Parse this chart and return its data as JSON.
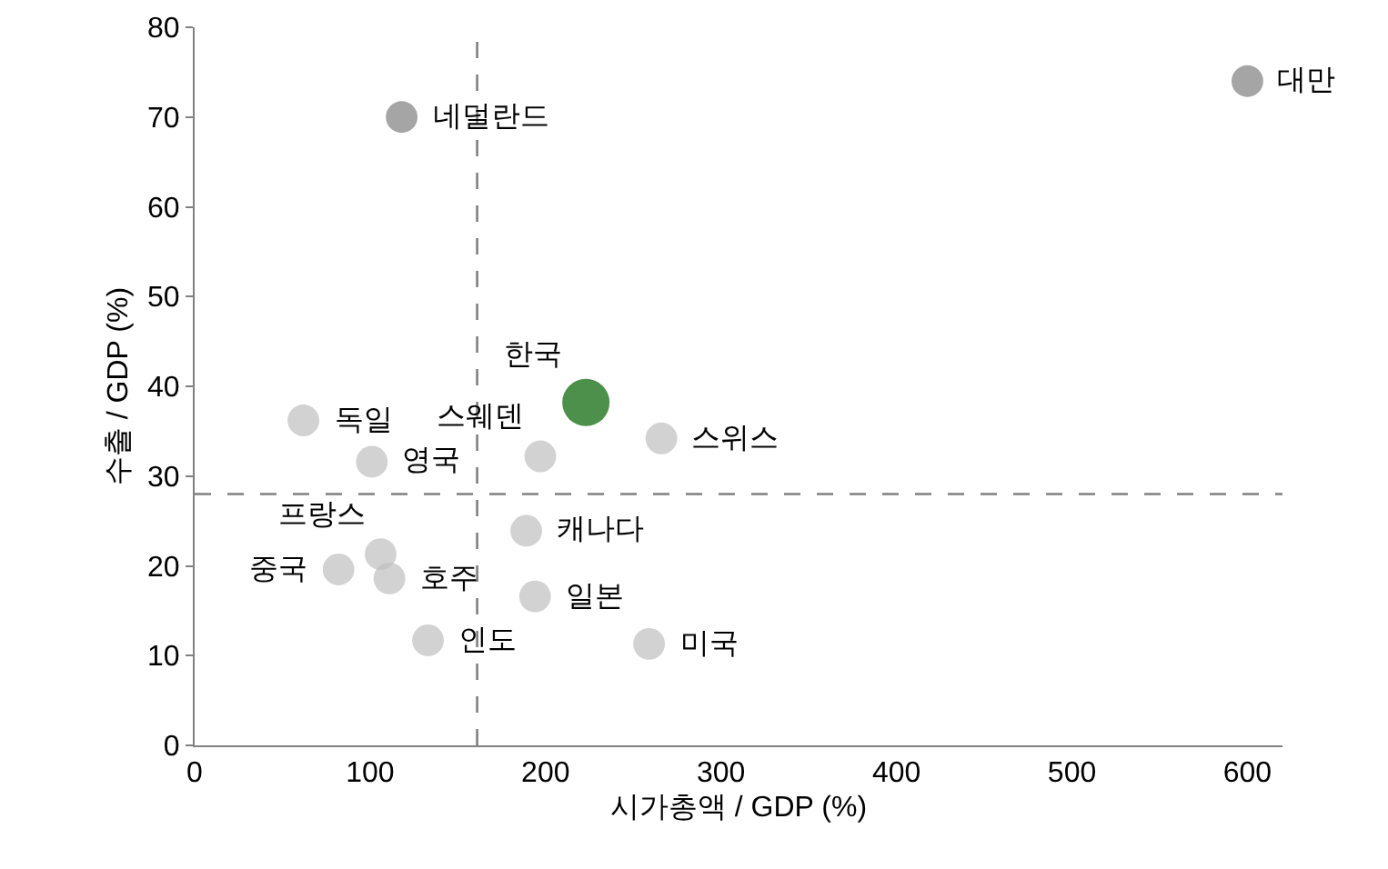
{
  "chart_data": {
    "type": "bubble",
    "xlabel": "시가총액 / GDP (%)",
    "ylabel": "수출 / GDP (%)",
    "x": [
      600,
      118,
      62,
      101,
      197,
      223,
      266,
      189,
      106,
      82,
      111,
      194,
      133,
      259
    ],
    "values": [
      74,
      70,
      36.2,
      31.6,
      32.2,
      38.2,
      34.2,
      23.9,
      21.3,
      19.6,
      18.6,
      16.6,
      11.7,
      11.3
    ],
    "sizes": [
      0.45,
      0.45,
      0.45,
      0.45,
      0.45,
      1,
      0.45,
      0.45,
      0.45,
      0.45,
      0.45,
      0.45,
      0.45,
      0.45
    ],
    "colors": [
      "#7f7f7f",
      "#7f7f7f",
      "#bfbfbf",
      "#bfbfbf",
      "#bfbfbf",
      "#006100",
      "#bfbfbf",
      "#bfbfbf",
      "#bfbfbf",
      "#bfbfbf",
      "#bfbfbf",
      "#bfbfbf",
      "#bfbfbf",
      "#bfbfbf"
    ],
    "xlim": [
      0,
      620
    ],
    "xticks": [
      0,
      100,
      200,
      300,
      400,
      500,
      600
    ],
    "ylim": [
      0,
      80
    ],
    "yticks": [
      0,
      10,
      20,
      30,
      40,
      50,
      60,
      70,
      80
    ],
    "grid": false,
    "ref_lines": [
      {
        "axis": "x",
        "value": 161,
        "color": "#808080",
        "line_style": "dashed"
      },
      {
        "axis": "y",
        "value": 28,
        "color": "#808080",
        "line_style": "dashed"
      }
    ],
    "annotations": [
      {
        "text": "대만",
        "x": 600,
        "y": 74
      },
      {
        "text": "네덜란드",
        "x": 118,
        "y": 70
      },
      {
        "text": "독일",
        "x": 62,
        "y": 36.2
      },
      {
        "text": "영국",
        "x": 101,
        "y": 31.6
      },
      {
        "text": "스웨덴",
        "x": 197,
        "y": 32.2
      },
      {
        "text": "한국",
        "x": 223,
        "y": 38.2
      },
      {
        "text": "스위스",
        "x": 266,
        "y": 34.2
      },
      {
        "text": "캐나다",
        "x": 189,
        "y": 23.9
      },
      {
        "text": "프랑스",
        "x": 106,
        "y": 21.3
      },
      {
        "text": "중국",
        "x": 82,
        "y": 19.6
      },
      {
        "text": "호주",
        "x": 111,
        "y": 18.6
      },
      {
        "text": "일본",
        "x": 194,
        "y": 16.6
      },
      {
        "text": "인도",
        "x": 133,
        "y": 11.7
      },
      {
        "text": "미국",
        "x": 259,
        "y": 11.3
      }
    ]
  }
}
